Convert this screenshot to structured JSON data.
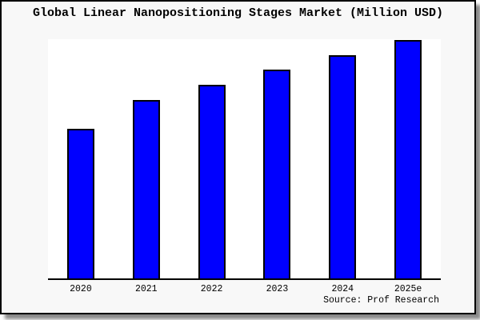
{
  "page": {
    "background": "#ffffff"
  },
  "card": {
    "background": "#f8f8f8",
    "border_color": "#000000",
    "shadow_color": "#8a8a8a"
  },
  "header": {
    "title": "Global Linear Nanopositioning Stages Market (Million USD)"
  },
  "footer": {
    "source": "Source: Prof Research"
  },
  "chart_data": {
    "type": "bar",
    "title": "Global Linear Nanopositioning Stages Market (Million USD)",
    "categories": [
      "2020",
      "2021",
      "2022",
      "2023",
      "2024",
      "2025e"
    ],
    "values": [
      62.7,
      75.0,
      81.3,
      87.7,
      93.7,
      100.0
    ],
    "value_note": "No numeric y-axis is rendered in the chart; values are bar heights relative to the tallest bar (2025e = 100)",
    "xlabel": "",
    "ylabel": "",
    "ylim": [
      0,
      100
    ],
    "grid": false,
    "legend": "none",
    "y_axis_shown": false,
    "bar_color": "#0000ff",
    "bar_edge_color": "#000000",
    "axis_color": "#000000",
    "plot_background": "#ffffff"
  }
}
